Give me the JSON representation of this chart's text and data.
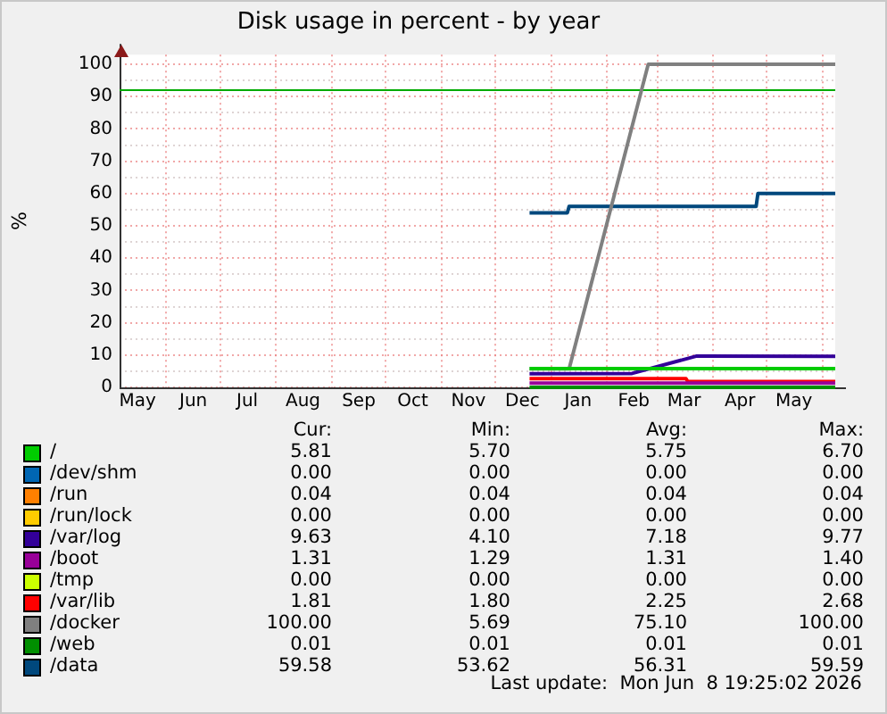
{
  "chart_data": {
    "type": "line",
    "title": "Disk usage in percent - by year",
    "ylabel": "%",
    "xlim": [
      "2025-05-06",
      "2026-06-08"
    ],
    "xticks": [
      {
        "value": "2025-05-16",
        "label": "May"
      },
      {
        "value": "2025-06-01",
        "label": null
      },
      {
        "value": "2025-06-16",
        "label": "Jun"
      },
      {
        "value": "2025-07-01",
        "label": null
      },
      {
        "value": "2025-07-16",
        "label": "Jul"
      },
      {
        "value": "2025-08-01",
        "label": null
      },
      {
        "value": "2025-08-16",
        "label": "Aug"
      },
      {
        "value": "2025-09-01",
        "label": null
      },
      {
        "value": "2025-09-16",
        "label": "Sep"
      },
      {
        "value": "2025-10-01",
        "label": null
      },
      {
        "value": "2025-10-16",
        "label": "Oct"
      },
      {
        "value": "2025-11-01",
        "label": null
      },
      {
        "value": "2025-11-16",
        "label": "Nov"
      },
      {
        "value": "2025-12-01",
        "label": null
      },
      {
        "value": "2025-12-16",
        "label": "Dec"
      },
      {
        "value": "2026-01-01",
        "label": null
      },
      {
        "value": "2026-01-16",
        "label": "Jan"
      },
      {
        "value": "2026-02-01",
        "label": null
      },
      {
        "value": "2026-02-16",
        "label": "Feb"
      },
      {
        "value": "2026-03-01",
        "label": null
      },
      {
        "value": "2026-03-16",
        "label": "Mar"
      },
      {
        "value": "2026-04-01",
        "label": null
      },
      {
        "value": "2026-04-16",
        "label": "Apr"
      },
      {
        "value": "2026-05-01",
        "label": null
      },
      {
        "value": "2026-05-16",
        "label": "May"
      },
      {
        "value": "2026-06-01",
        "label": null
      }
    ],
    "ylim": [
      0,
      103
    ],
    "yticks": [
      0,
      {
        "value": 5,
        "label": null
      },
      10,
      {
        "value": 15,
        "label": null
      },
      20,
      {
        "value": 25,
        "label": null
      },
      30,
      {
        "value": 35,
        "label": null
      },
      40,
      {
        "value": 45,
        "label": null
      },
      50,
      {
        "value": 55,
        "label": null
      },
      60,
      {
        "value": 65,
        "label": null
      },
      70,
      {
        "value": 75,
        "label": null
      },
      80,
      {
        "value": 85,
        "label": null
      },
      90,
      {
        "value": 95,
        "label": null
      },
      100
    ],
    "grid": true,
    "legend": "bottom",
    "marker": "none",
    "line_style": "solid",
    "ref_lines": [
      {
        "axis": "y",
        "value": 92,
        "color": "#00aa00"
      }
    ],
    "series": [
      {
        "name": "/",
        "color": "#00cc00",
        "x": [
          "2025-12-20",
          "2026-06-08"
        ],
        "values": [
          5.8,
          5.8
        ]
      },
      {
        "name": "/dev/shm",
        "color": "#0066b3"
      },
      {
        "name": "/run",
        "color": "#ff8000"
      },
      {
        "name": "/run/lock",
        "color": "#ffcc00"
      },
      {
        "name": "/var/log",
        "color": "#330099",
        "x": [
          "2025-12-20",
          "2026-02-15",
          "2026-03-23",
          "2026-06-08"
        ],
        "values": [
          4.2,
          4.3,
          9.7,
          9.6
        ]
      },
      {
        "name": "/boot",
        "color": "#990099",
        "x": [
          "2025-12-20",
          "2026-06-08"
        ],
        "values": [
          1.3,
          1.3
        ]
      },
      {
        "name": "/tmp",
        "color": "#ccff00"
      },
      {
        "name": "/var/lib",
        "color": "#ff0000",
        "x": [
          "2025-12-20",
          "2026-03-17",
          "2026-03-18",
          "2026-06-08"
        ],
        "values": [
          2.7,
          2.7,
          1.8,
          1.8
        ]
      },
      {
        "name": "/docker",
        "color": "#808080",
        "x": [
          "2025-12-20",
          "2026-01-11",
          "2026-02-24",
          "2026-06-08"
        ],
        "values": [
          5.7,
          5.7,
          100,
          100
        ]
      },
      {
        "name": "/web",
        "color": "#008f00",
        "x": [
          "2025-12-20",
          "2026-06-08"
        ],
        "values": [
          0,
          0
        ]
      },
      {
        "name": "/data",
        "color": "#00487d",
        "x": [
          "2025-12-20",
          "2026-01-10",
          "2026-01-11",
          "2026-04-25",
          "2026-04-26",
          "2026-06-08"
        ],
        "values": [
          54,
          54,
          56,
          56,
          60,
          60
        ]
      }
    ],
    "annotations": [
      "Cur:",
      "Min:",
      "Avg:",
      "Max:",
      "5.81",
      "5.70",
      "5.75",
      "6.70",
      "0.00",
      "0.00",
      "0.00",
      "0.00",
      "0.04",
      "0.04",
      "0.04",
      "0.04",
      "0.00",
      "0.00",
      "0.00",
      "0.00",
      "9.63",
      "4.10",
      "7.18",
      "9.77",
      "1.31",
      "1.29",
      "1.31",
      "1.40",
      "0.00",
      "0.00",
      "0.00",
      "0.00",
      "1.81",
      "1.80",
      "2.25",
      "2.68",
      "100.00",
      "5.69",
      "75.10",
      "100.00",
      "0.01",
      "0.01",
      "0.01",
      "0.01",
      "59.58",
      "53.62",
      "56.31",
      "59.59",
      "Last update:  Mon Jun  8 19:25:02 2026"
    ]
  }
}
